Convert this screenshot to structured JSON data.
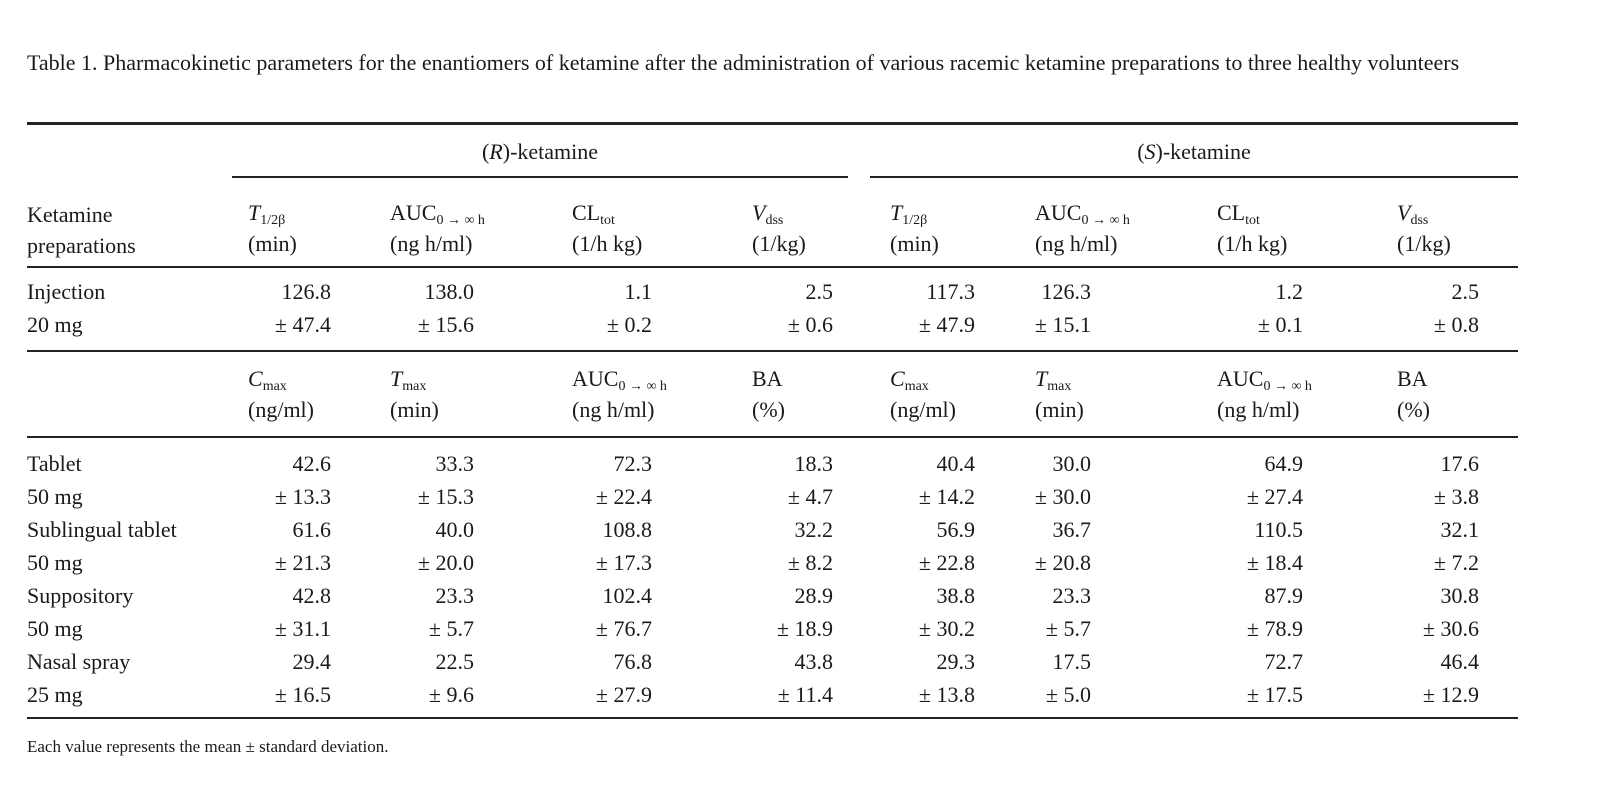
{
  "caption": "Table 1.  Pharmacokinetic parameters for the enantiomers of ketamine after the administration of various racemic ketamine preparations to three healthy volunteers",
  "group_headers": [
    "(R)-ketamine",
    "(S)-ketamine"
  ],
  "row_header_label": [
    "Ketamine",
    "preparations"
  ],
  "iv_columns": [
    {
      "main": "T",
      "sub": "1/2β",
      "unit": "(min)"
    },
    {
      "main": "AUC",
      "sub": "0 → ∞ h",
      "unit": "(ng h/ml)"
    },
    {
      "main": "CL",
      "sub": "tot",
      "unit": "(1/h kg)"
    },
    {
      "main": "V",
      "sub": "dss",
      "unit": "(1/kg)"
    },
    {
      "main": "T",
      "sub": "1/2β",
      "unit": "(min)"
    },
    {
      "main": "AUC",
      "sub": "0 → ∞ h",
      "unit": "(ng h/ml)"
    },
    {
      "main": "CL",
      "sub": "tot",
      "unit": "(1/h kg)"
    },
    {
      "main": "V",
      "sub": "dss",
      "unit": "(1/kg)"
    }
  ],
  "iv_rows": [
    {
      "name": "Injection",
      "dose": "20 mg",
      "mean": [
        "126.8",
        "138.0",
        "1.1",
        "2.5",
        "117.3",
        "126.3",
        "1.2",
        "2.5"
      ],
      "sd": [
        "± 47.4",
        "± 15.6",
        "± 0.2",
        "± 0.6",
        "± 47.9",
        "± 15.1",
        "± 0.1",
        "± 0.8"
      ]
    }
  ],
  "ev_columns": [
    {
      "main": "C",
      "sub": "max",
      "unit": "(ng/ml)"
    },
    {
      "main": "T",
      "sub": "max",
      "unit": "(min)"
    },
    {
      "main": "AUC",
      "sub": "0 → ∞ h",
      "unit": "(ng h/ml)"
    },
    {
      "main": "BA",
      "sub": "",
      "unit": "(%)"
    },
    {
      "main": "C",
      "sub": "max",
      "unit": "(ng/ml)"
    },
    {
      "main": "T",
      "sub": "max",
      "unit": "(min)"
    },
    {
      "main": "AUC",
      "sub": "0 → ∞ h",
      "unit": "(ng h/ml)"
    },
    {
      "main": "BA",
      "sub": "",
      "unit": "(%)"
    }
  ],
  "ev_rows": [
    {
      "name": "Tablet",
      "dose": "50 mg",
      "mean": [
        "42.6",
        "33.3",
        "72.3",
        "18.3",
        "40.4",
        "30.0",
        "64.9",
        "17.6"
      ],
      "sd": [
        "± 13.3",
        "± 15.3",
        "± 22.4",
        "± 4.7",
        "± 14.2",
        "± 30.0",
        "± 27.4",
        "± 3.8"
      ]
    },
    {
      "name": "Sublingual tablet",
      "dose": "50 mg",
      "mean": [
        "61.6",
        "40.0",
        "108.8",
        "32.2",
        "56.9",
        "36.7",
        "110.5",
        "32.1"
      ],
      "sd": [
        "± 21.3",
        "± 20.0",
        "± 17.3",
        "± 8.2",
        "± 22.8",
        "± 20.8",
        "± 18.4",
        "± 7.2"
      ]
    },
    {
      "name": "Suppository",
      "dose": "50 mg",
      "mean": [
        "42.8",
        "23.3",
        "102.4",
        "28.9",
        "38.8",
        "23.3",
        "87.9",
        "30.8"
      ],
      "sd": [
        "± 31.1",
        "± 5.7",
        "± 76.7",
        "± 18.9",
        "± 30.2",
        "± 5.7",
        "± 78.9",
        "± 30.6"
      ]
    },
    {
      "name": "Nasal spray",
      "dose": "25 mg",
      "mean": [
        "29.4",
        "22.5",
        "76.8",
        "43.8",
        "29.3",
        "17.5",
        "72.7",
        "46.4"
      ],
      "sd": [
        "± 16.5",
        "± 9.6",
        "± 27.9",
        "± 11.4",
        "± 13.8",
        "± 5.0",
        "± 17.5",
        "± 12.9"
      ]
    }
  ],
  "footnote": "Each value represents the mean ± standard deviation."
}
